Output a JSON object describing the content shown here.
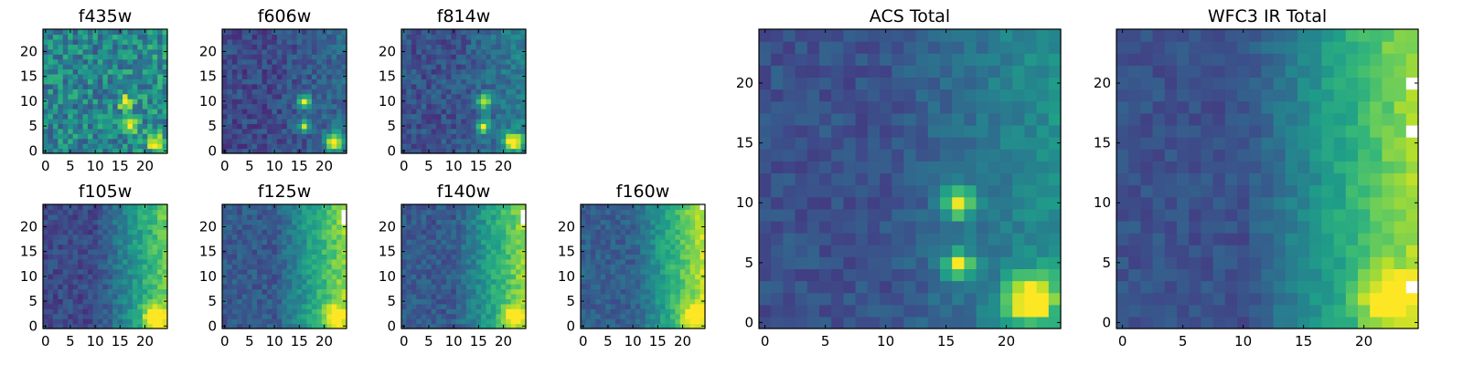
{
  "colors": {
    "colormap": "viridis",
    "colormap_stops": [
      "#440154",
      "#482878",
      "#3e4a89",
      "#31688e",
      "#26828e",
      "#1f9e89",
      "#35b779",
      "#6ece58",
      "#b5de2b",
      "#fde725"
    ],
    "saturated_pixel": "#ffffff",
    "frame": "#000000"
  },
  "chart_data": [
    {
      "id": "f435w",
      "type": "heatmap",
      "title": "f435w",
      "xlim": [
        0,
        24
      ],
      "ylim": [
        0,
        24
      ],
      "xticks": [
        0,
        5,
        10,
        15,
        20
      ],
      "yticks": [
        0,
        5,
        10,
        15,
        20
      ],
      "grid": false,
      "intensity": {
        "background": 0.45,
        "noise": 0.4,
        "gradient_right": 0.05,
        "sources": [
          [
            16,
            10,
            0.55,
            1.0
          ],
          [
            17,
            5,
            0.45,
            1.0
          ],
          [
            22,
            2,
            0.55,
            1.2
          ]
        ],
        "saturated_pixels": []
      }
    },
    {
      "id": "f606w",
      "type": "heatmap",
      "title": "f606w",
      "xlim": [
        0,
        24
      ],
      "ylim": [
        0,
        24
      ],
      "xticks": [
        0,
        5,
        10,
        15,
        20
      ],
      "yticks": [
        0,
        5,
        10,
        15,
        20
      ],
      "grid": false,
      "intensity": {
        "background": 0.22,
        "noise": 0.22,
        "gradient_right": 0.12,
        "sources": [
          [
            16,
            10,
            0.65,
            0.9
          ],
          [
            16,
            5,
            0.65,
            0.9
          ],
          [
            22,
            2,
            0.75,
            1.2
          ]
        ],
        "saturated_pixels": []
      }
    },
    {
      "id": "f814w",
      "type": "heatmap",
      "title": "f814w",
      "xlim": [
        0,
        24
      ],
      "ylim": [
        0,
        24
      ],
      "xticks": [
        0,
        5,
        10,
        15,
        20
      ],
      "yticks": [
        0,
        5,
        10,
        15,
        20
      ],
      "grid": false,
      "intensity": {
        "background": 0.25,
        "noise": 0.22,
        "gradient_right": 0.18,
        "sources": [
          [
            16,
            10,
            0.65,
            0.9
          ],
          [
            16,
            5,
            0.65,
            0.9
          ],
          [
            22,
            2,
            0.75,
            1.2
          ]
        ],
        "saturated_pixels": []
      }
    },
    {
      "id": "f105w",
      "type": "heatmap",
      "title": "f105w",
      "xlim": [
        0,
        24
      ],
      "ylim": [
        0,
        24
      ],
      "xticks": [
        0,
        5,
        10,
        15,
        20
      ],
      "yticks": [
        0,
        5,
        10,
        15,
        20
      ],
      "grid": false,
      "intensity": {
        "background": 0.22,
        "noise": 0.18,
        "gradient_right": 0.55,
        "sources": [
          [
            22,
            2,
            0.55,
            1.6
          ]
        ],
        "saturated_pixels": []
      }
    },
    {
      "id": "f125w",
      "type": "heatmap",
      "title": "f125w",
      "xlim": [
        0,
        24
      ],
      "ylim": [
        0,
        24
      ],
      "xticks": [
        0,
        5,
        10,
        15,
        20
      ],
      "yticks": [
        0,
        5,
        10,
        15,
        20
      ],
      "grid": false,
      "intensity": {
        "background": 0.28,
        "noise": 0.18,
        "gradient_right": 0.55,
        "sources": [
          [
            22,
            2,
            0.35,
            1.6
          ]
        ],
        "saturated_pixels": [
          [
            24,
            21
          ],
          [
            24,
            22
          ],
          [
            24,
            23
          ]
        ]
      }
    },
    {
      "id": "f140w",
      "type": "heatmap",
      "title": "f140w",
      "xlim": [
        0,
        24
      ],
      "ylim": [
        0,
        24
      ],
      "xticks": [
        0,
        5,
        10,
        15,
        20
      ],
      "yticks": [
        0,
        5,
        10,
        15,
        20
      ],
      "grid": false,
      "intensity": {
        "background": 0.28,
        "noise": 0.18,
        "gradient_right": 0.55,
        "sources": [
          [
            22,
            2,
            0.35,
            1.6
          ]
        ],
        "saturated_pixels": [
          [
            24,
            21
          ],
          [
            24,
            22
          ],
          [
            24,
            23
          ]
        ]
      }
    },
    {
      "id": "f160w",
      "type": "heatmap",
      "title": "f160w",
      "xlim": [
        0,
        24
      ],
      "ylim": [
        0,
        24
      ],
      "xticks": [
        0,
        5,
        10,
        15,
        20
      ],
      "yticks": [
        0,
        5,
        10,
        15,
        20
      ],
      "grid": false,
      "intensity": {
        "background": 0.3,
        "noise": 0.16,
        "gradient_right": 0.6,
        "sources": [
          [
            22,
            2,
            0.35,
            1.6
          ]
        ],
        "saturated_pixels": [
          [
            24,
            24
          ]
        ]
      }
    },
    {
      "id": "acs-total",
      "type": "heatmap",
      "title": "ACS Total",
      "xlim": [
        0,
        24
      ],
      "ylim": [
        0,
        24
      ],
      "xticks": [
        0,
        5,
        10,
        15,
        20
      ],
      "yticks": [
        0,
        5,
        10,
        15,
        20
      ],
      "grid": false,
      "intensity": {
        "background": 0.25,
        "noise": 0.14,
        "gradient_right": 0.25,
        "sources": [
          [
            16,
            10,
            0.65,
            0.9
          ],
          [
            16,
            5,
            0.7,
            0.8
          ],
          [
            22,
            2,
            0.75,
            1.4
          ]
        ],
        "saturated_pixels": []
      }
    },
    {
      "id": "wfc3-ir-total",
      "type": "heatmap",
      "title": "WFC3 IR Total",
      "xlim": [
        0,
        24
      ],
      "ylim": [
        0,
        24
      ],
      "xticks": [
        0,
        5,
        10,
        15,
        20
      ],
      "yticks": [
        0,
        5,
        10,
        15,
        20
      ],
      "grid": false,
      "intensity": {
        "background": 0.25,
        "noise": 0.12,
        "gradient_right": 0.6,
        "sources": [
          [
            22,
            2,
            0.4,
            1.6
          ]
        ],
        "saturated_pixels": [
          [
            24,
            20
          ],
          [
            24,
            16
          ],
          [
            24,
            3
          ]
        ]
      }
    }
  ]
}
